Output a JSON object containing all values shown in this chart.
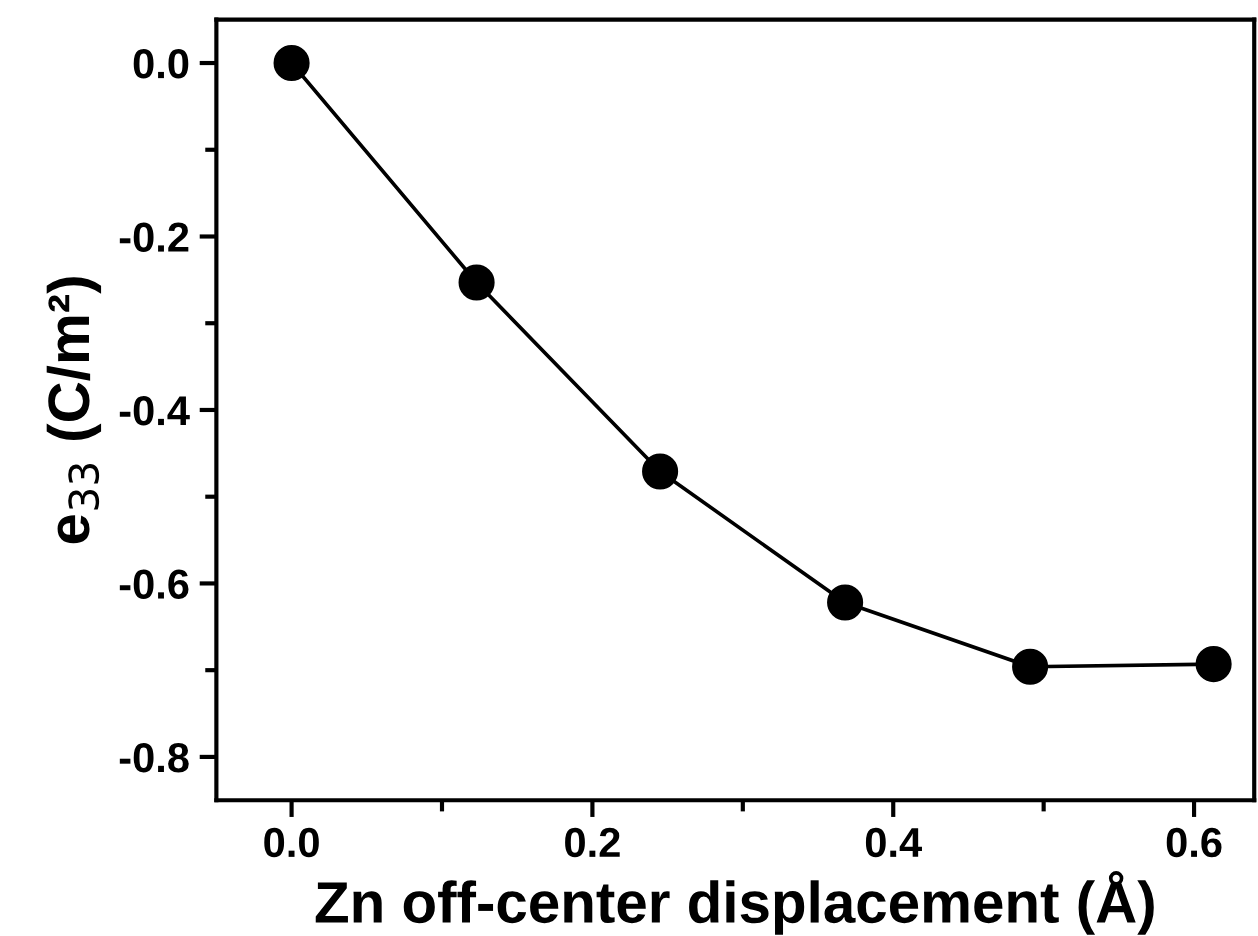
{
  "chart_data": {
    "type": "line",
    "xlabel": "Zn off-center displacement (Å)",
    "ylabel": "e$_{33}$ (C/m²)",
    "x": [
      0,
      0.123,
      0.245,
      0.368,
      0.491,
      0.613
    ],
    "series": [
      {
        "color": "#000000",
        "values": [
          0,
          -0.253,
          -0.471,
          -0.622,
          -0.696,
          -0.693
        ]
      }
    ],
    "marker": "circle",
    "line_style": "solid",
    "grid": false,
    "legend": false,
    "xlim": [
      -0.05,
      0.64
    ],
    "ylim": [
      -0.85,
      0.05
    ],
    "xticks": [
      {
        "value": 0.0,
        "label": "0.0"
      },
      {
        "value": 0.1,
        "label": null
      },
      {
        "value": 0.2,
        "label": "0.2"
      },
      {
        "value": 0.3,
        "label": null
      },
      {
        "value": 0.4,
        "label": "0.4"
      },
      {
        "value": 0.5,
        "label": null
      },
      {
        "value": 0.6,
        "label": "0.6"
      }
    ],
    "yticks": [
      {
        "value": 0.0,
        "label": "0.0"
      },
      {
        "value": -0.1,
        "label": null
      },
      {
        "value": -0.2,
        "label": "-0.2"
      },
      {
        "value": -0.3,
        "label": null
      },
      {
        "value": -0.4,
        "label": "-0.4"
      },
      {
        "value": -0.5,
        "label": null
      },
      {
        "value": -0.6,
        "label": "-0.6"
      },
      {
        "value": -0.7,
        "label": null
      },
      {
        "value": -0.8,
        "label": "-0.8"
      }
    ]
  }
}
